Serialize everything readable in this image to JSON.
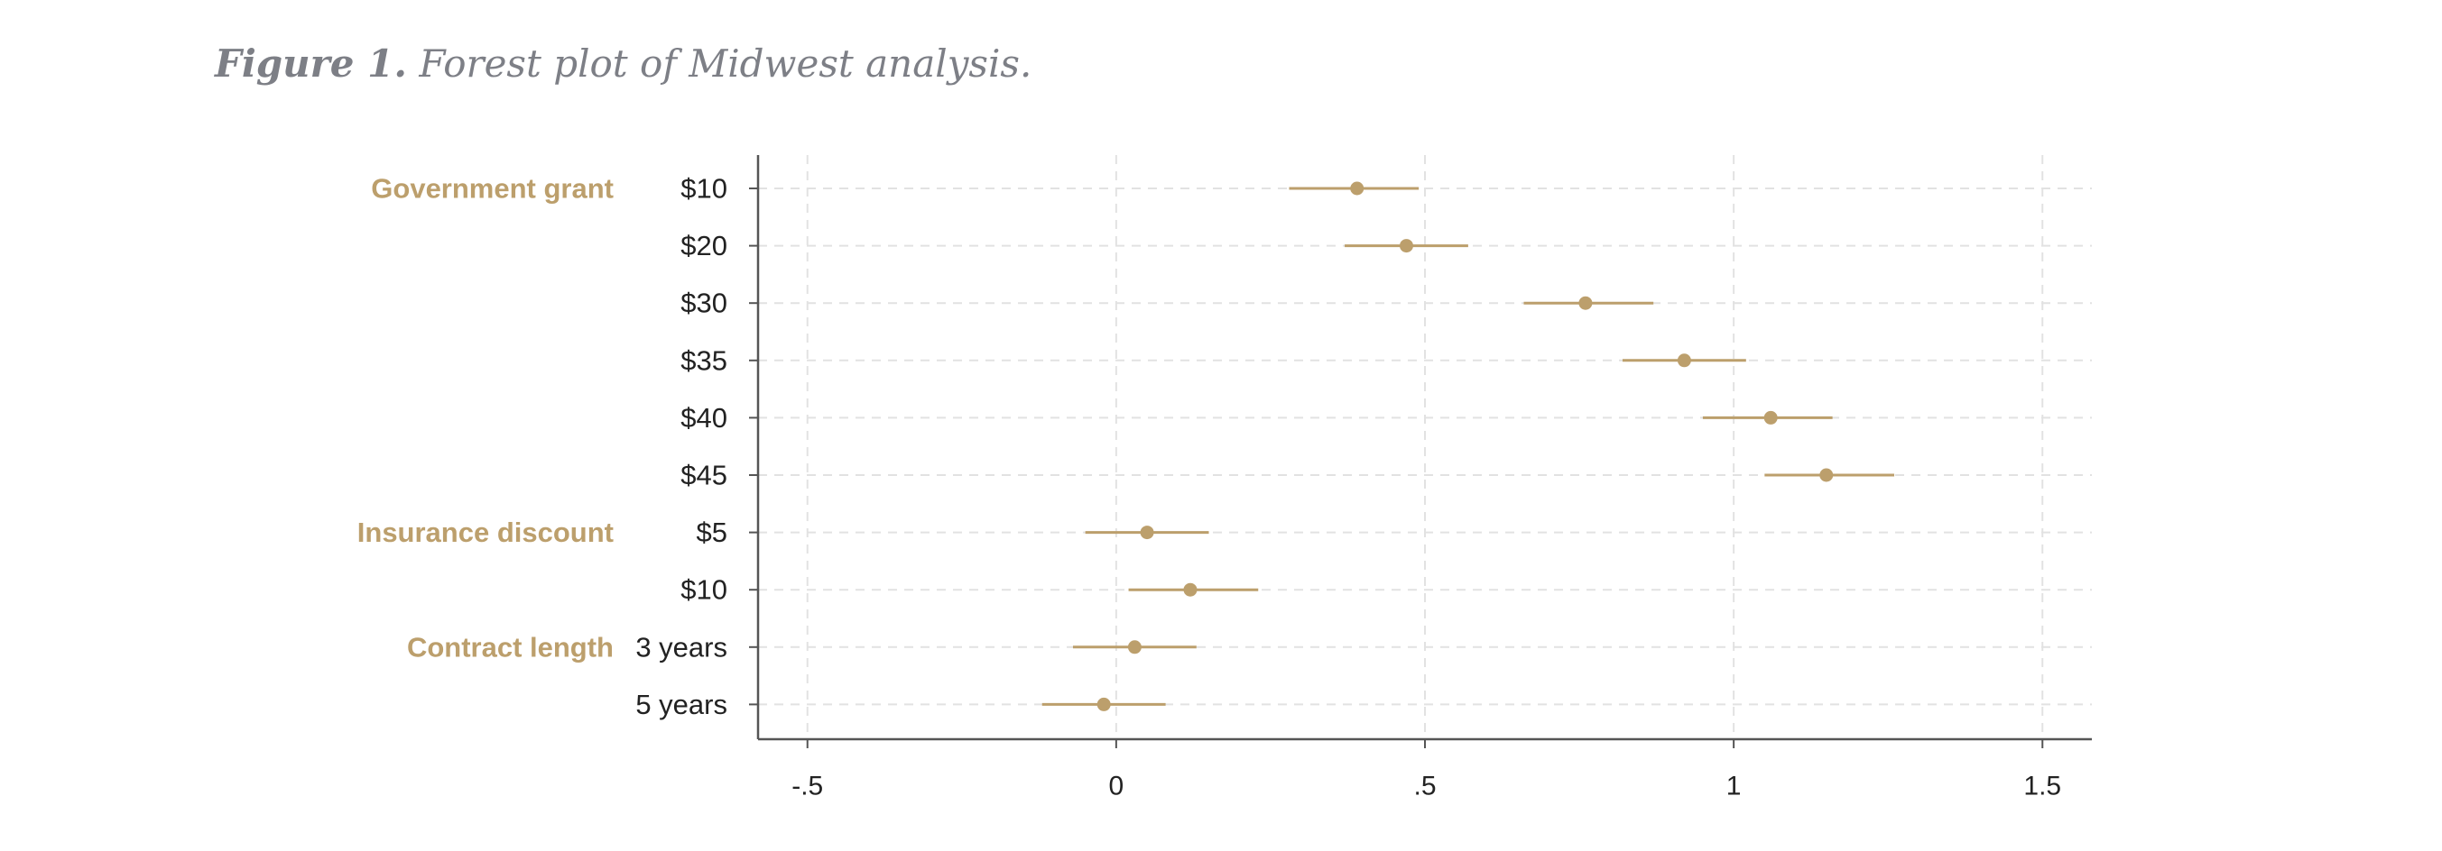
{
  "caption": {
    "label": "Figure 1.",
    "text": "Forest plot of Midwest analysis."
  },
  "chart_data": {
    "type": "forest",
    "title": "Figure 1. Forest plot of Midwest analysis.",
    "xlim": [
      -0.58,
      1.58
    ],
    "x_ticks": [
      -0.5,
      0,
      0.5,
      1,
      1.5
    ],
    "x_tick_labels": [
      "-.5",
      "0",
      ".5",
      "1",
      "1.5"
    ],
    "grid": "dashed vertical and horizontal",
    "colors": {
      "marker": "#bc9f6c",
      "group_label": "#bc9f6c",
      "grid": "#e2e2e2",
      "axis": "#555555"
    },
    "groups": [
      {
        "name": "Government grant",
        "rows": [
          {
            "level": "$10",
            "estimate": 0.39,
            "lower": 0.28,
            "upper": 0.49
          },
          {
            "level": "$20",
            "estimate": 0.47,
            "lower": 0.37,
            "upper": 0.57
          },
          {
            "level": "$30",
            "estimate": 0.76,
            "lower": 0.66,
            "upper": 0.87
          },
          {
            "level": "$35",
            "estimate": 0.92,
            "lower": 0.82,
            "upper": 1.02
          },
          {
            "level": "$40",
            "estimate": 1.06,
            "lower": 0.95,
            "upper": 1.16
          },
          {
            "level": "$45",
            "estimate": 1.15,
            "lower": 1.05,
            "upper": 1.26
          }
        ]
      },
      {
        "name": "Insurance discount",
        "rows": [
          {
            "level": "$5",
            "estimate": 0.05,
            "lower": -0.05,
            "upper": 0.15
          },
          {
            "level": "$10",
            "estimate": 0.12,
            "lower": 0.02,
            "upper": 0.23
          }
        ]
      },
      {
        "name": "Contract length",
        "rows": [
          {
            "level": "3 years",
            "estimate": 0.03,
            "lower": -0.07,
            "upper": 0.13
          },
          {
            "level": "5 years",
            "estimate": -0.02,
            "lower": -0.12,
            "upper": 0.08
          }
        ]
      }
    ]
  }
}
